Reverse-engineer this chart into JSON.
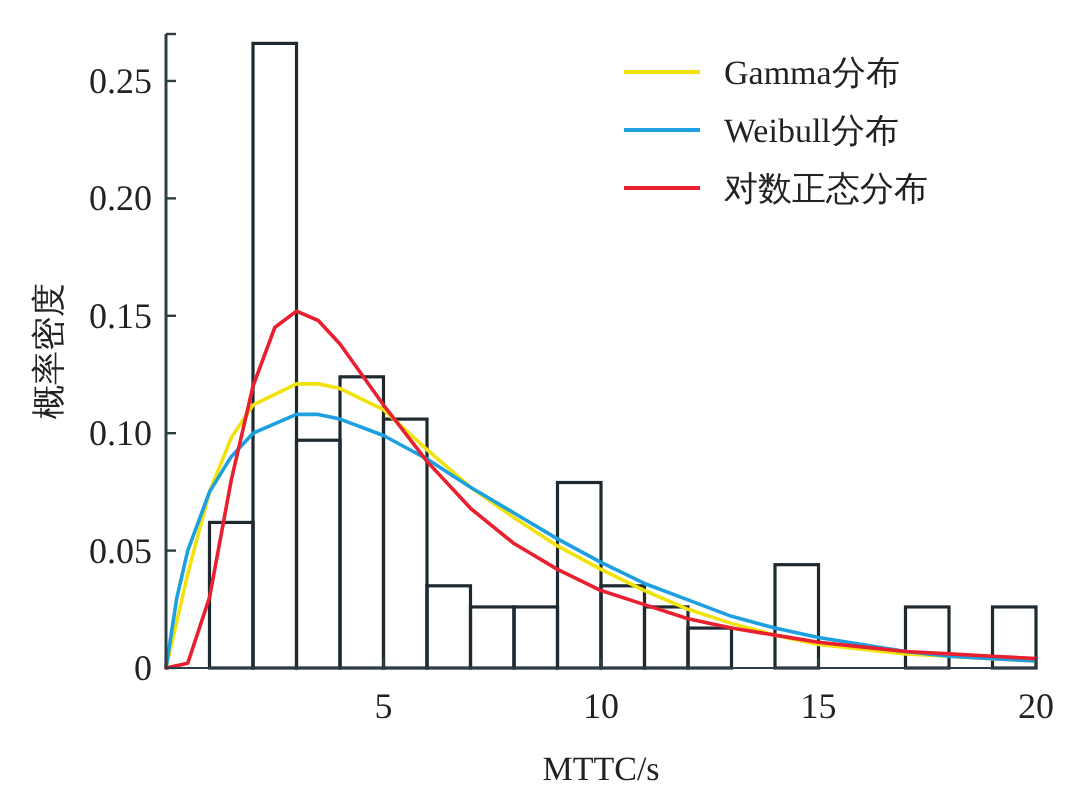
{
  "chart_data": {
    "type": "histogram",
    "xlabel": "MTTC/s",
    "ylabel": "概率密度",
    "bins": [
      0,
      1,
      2,
      3,
      4,
      5,
      6,
      7,
      8,
      9,
      10,
      11,
      12,
      13,
      14,
      15,
      16,
      17,
      18,
      19,
      20
    ],
    "values": [
      0,
      0.062,
      0.266,
      0.097,
      0.124,
      0.106,
      0.035,
      0.026,
      0.026,
      0.079,
      0.035,
      0.026,
      0.017,
      0,
      0.044,
      0,
      0,
      0.026,
      0,
      0.026
    ],
    "color": "#1e2a30",
    "series": [
      {
        "name": "Gamma分布",
        "type": "line",
        "color": "#f2e20c",
        "x": [
          0,
          0.5,
          1,
          1.5,
          2,
          3,
          3.5,
          4,
          5,
          6,
          7,
          8,
          9,
          10,
          11,
          12,
          13,
          14,
          15,
          16,
          17,
          18,
          19,
          20
        ],
        "values": [
          0,
          0.04,
          0.075,
          0.098,
          0.112,
          0.121,
          0.121,
          0.119,
          0.11,
          0.093,
          0.077,
          0.064,
          0.052,
          0.042,
          0.033,
          0.025,
          0.019,
          0.014,
          0.01,
          0.008,
          0.006,
          0.005,
          0.004,
          0.003
        ]
      },
      {
        "name": "Weibull分布",
        "type": "line",
        "color": "#1ea0e0",
        "x": [
          0,
          0.25,
          0.5,
          1,
          1.5,
          2,
          3,
          3.5,
          4,
          5,
          6,
          7,
          8,
          9,
          10,
          11,
          12,
          13,
          14,
          15,
          16,
          17,
          18,
          19,
          20
        ],
        "values": [
          0,
          0.03,
          0.05,
          0.075,
          0.09,
          0.1,
          0.108,
          0.108,
          0.106,
          0.099,
          0.089,
          0.077,
          0.066,
          0.055,
          0.045,
          0.036,
          0.029,
          0.022,
          0.017,
          0.013,
          0.01,
          0.007,
          0.005,
          0.004,
          0.003
        ]
      },
      {
        "name": "对数正态分布",
        "type": "line",
        "color": "#e8202f",
        "x": [
          0,
          0.5,
          1,
          1.5,
          2,
          2.5,
          3,
          3.5,
          4,
          5,
          6,
          7,
          8,
          9,
          10,
          11,
          12,
          13,
          14,
          15,
          16,
          17,
          18,
          19,
          20
        ],
        "values": [
          0,
          0.002,
          0.03,
          0.08,
          0.12,
          0.145,
          0.152,
          0.148,
          0.138,
          0.112,
          0.088,
          0.068,
          0.053,
          0.042,
          0.033,
          0.027,
          0.021,
          0.017,
          0.014,
          0.011,
          0.009,
          0.007,
          0.006,
          0.005,
          0.004
        ]
      }
    ],
    "xlim": [
      0,
      20
    ],
    "xticks": [
      {
        "value": 0,
        "label": null
      },
      5,
      10,
      15,
      20
    ],
    "ylim": [
      0,
      0.27
    ],
    "yticks": [
      {
        "value": 0,
        "label": "0"
      },
      0.05,
      {
        "value": 0.1,
        "label": "0.10"
      },
      0.15,
      {
        "value": 0.2,
        "label": "0.20"
      },
      0.25
    ],
    "legend": "top right"
  }
}
